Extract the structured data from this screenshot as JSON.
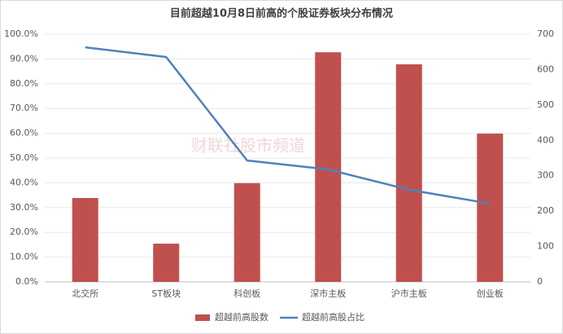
{
  "chart_data": {
    "type": "combo",
    "title": "目前超越10月8日前高的个股证券板块分布情况",
    "watermark": "财联社股市频道",
    "categories": [
      "北交所",
      "ST板块",
      "科创板",
      "深市主板",
      "沪市主板",
      "创业板"
    ],
    "series": [
      {
        "name": "超越前高股数",
        "type": "bar",
        "axis": "y2",
        "color": "#c0504d",
        "values": [
          237,
          108,
          279,
          649,
          615,
          419
        ]
      },
      {
        "name": "超越前高股占比",
        "type": "line",
        "axis": "y",
        "color": "#4f81bd",
        "values": [
          94.7,
          90.8,
          49.0,
          45.4,
          37.2,
          31.6
        ]
      }
    ],
    "ylim": [
      0,
      100
    ],
    "yticks": [
      {
        "value": 0,
        "label": "0.0%"
      },
      {
        "value": 10,
        "label": "10.0%"
      },
      {
        "value": 20,
        "label": "20.0%"
      },
      {
        "value": 30,
        "label": "30.0%"
      },
      {
        "value": 40,
        "label": "40.0%"
      },
      {
        "value": 50,
        "label": "50.0%"
      },
      {
        "value": 60,
        "label": "60.0%"
      },
      {
        "value": 70,
        "label": "70.0%"
      },
      {
        "value": 80,
        "label": "80.0%"
      },
      {
        "value": 90,
        "label": "90.0%"
      },
      {
        "value": 100,
        "label": "100.0%"
      }
    ],
    "y2lim": [
      0,
      700
    ],
    "y2ticks": [
      0,
      100,
      200,
      300,
      400,
      500,
      600,
      700
    ],
    "grid": true,
    "legend": "bottom"
  }
}
